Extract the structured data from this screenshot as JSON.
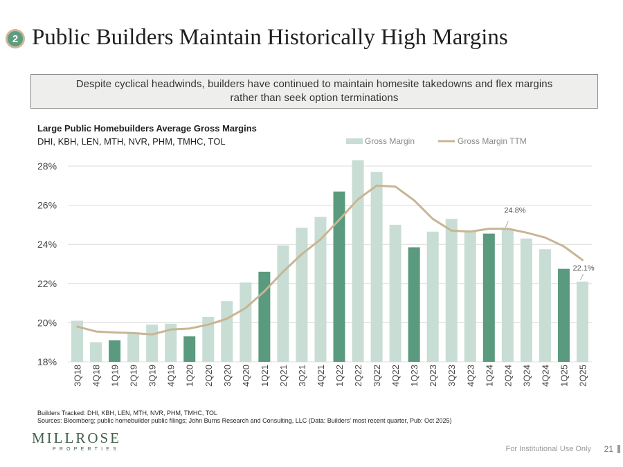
{
  "slide": {
    "number": "2",
    "title": "Public Builders Maintain Historically High Margins",
    "callout": "Despite cyclical headwinds, builders have continued to maintain homesite takedowns and flex margins rather than seek option terminations",
    "footnote_1": "Builders Tracked: DHI, KBH, LEN, MTH, NVR, PHM, TMHC, TOL",
    "footnote_2": "Sources: Bloomberg; public homebuilder public filings; John Burns Research and Consulting, LLC (Data: Builders' most recent quarter, Pub: Oct 2025)",
    "logo": "MILLROSE",
    "logo_sub": "PROPERTIES",
    "footer": "For Institutional Use Only",
    "page": "21"
  },
  "colors": {
    "bar_light": "#c8ddd4",
    "bar_dark": "#5a9a7e",
    "line": "#c8b593",
    "grid": "#dcdcdc",
    "axis_text": "#444444"
  },
  "chart_data": {
    "type": "bar",
    "title": "Large Public Homebuilders Average Gross Margins",
    "subtitle": "DHI, KBH, LEN, MTH, NVR, PHM, TMHC, TOL",
    "categories": [
      "3Q18",
      "4Q18",
      "1Q19",
      "2Q19",
      "3Q19",
      "4Q19",
      "1Q20",
      "2Q20",
      "3Q20",
      "4Q20",
      "1Q21",
      "2Q21",
      "3Q21",
      "4Q21",
      "1Q22",
      "2Q22",
      "3Q22",
      "4Q22",
      "1Q23",
      "2Q23",
      "3Q23",
      "4Q23",
      "1Q24",
      "2Q24",
      "3Q24",
      "4Q24",
      "1Q25",
      "2Q25"
    ],
    "series": [
      {
        "name": "Gross Margin",
        "type": "bar",
        "values": [
          20.1,
          19.0,
          19.1,
          19.5,
          19.9,
          19.95,
          19.3,
          20.3,
          21.1,
          22.05,
          22.6,
          23.95,
          24.85,
          25.4,
          26.7,
          28.3,
          27.7,
          25.0,
          23.85,
          24.65,
          25.3,
          24.65,
          24.55,
          24.8,
          24.3,
          23.75,
          22.75,
          22.1
        ],
        "highlight_categories": [
          "1Q19",
          "1Q20",
          "1Q21",
          "1Q22",
          "1Q23",
          "1Q24",
          "1Q25"
        ]
      },
      {
        "name": "Gross Margin TTM",
        "type": "line",
        "values": [
          19.8,
          19.55,
          19.5,
          19.47,
          19.4,
          19.65,
          19.7,
          19.9,
          20.2,
          20.75,
          21.6,
          22.6,
          23.5,
          24.25,
          25.25,
          26.3,
          27.0,
          26.95,
          26.25,
          25.3,
          24.7,
          24.65,
          24.8,
          24.8,
          24.6,
          24.35,
          23.9,
          23.2
        ]
      }
    ],
    "y_axis": {
      "min": 18,
      "max": 28,
      "ticks": [
        "18%",
        "20%",
        "22%",
        "24%",
        "26%",
        "28%"
      ]
    },
    "annotations": [
      {
        "category": "2Q24",
        "label": "24.8%"
      },
      {
        "category": "2Q25",
        "label": "22.1%"
      }
    ],
    "legend": {
      "position": "top-right",
      "entries": [
        "Gross Margin",
        "Gross Margin TTM"
      ]
    },
    "grid": true
  }
}
